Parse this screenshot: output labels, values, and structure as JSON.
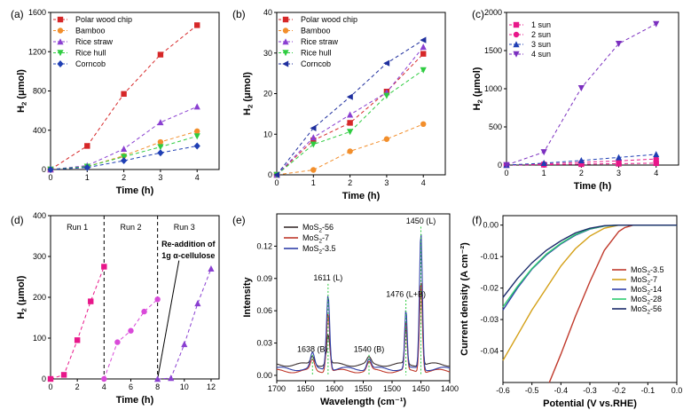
{
  "chart_data": [
    {
      "id": "a",
      "panel_label": "(a)",
      "type": "line",
      "xlabel": "Time (h)",
      "ylabel": "H2 (μmol)",
      "xlim": [
        0,
        4.6
      ],
      "ylim": [
        0,
        1600
      ],
      "xticks": [
        0,
        1,
        2,
        3,
        4
      ],
      "yticks": [
        0,
        400,
        800,
        1200,
        1600
      ],
      "series": [
        {
          "name": "Polar wood chip",
          "color": "#d62728",
          "marker": "square",
          "x": [
            0,
            1,
            2,
            3,
            4
          ],
          "y": [
            0,
            240,
            770,
            1170,
            1470
          ]
        },
        {
          "name": "Bamboo",
          "color": "#f28e2b",
          "marker": "circle",
          "x": [
            0,
            1,
            2,
            3,
            4
          ],
          "y": [
            0,
            30,
            140,
            280,
            390
          ]
        },
        {
          "name": "Rice straw",
          "color": "#8a3fd1",
          "marker": "triangle-up",
          "x": [
            0,
            1,
            2,
            3,
            4
          ],
          "y": [
            0,
            40,
            210,
            480,
            640
          ]
        },
        {
          "name": "Rice hull",
          "color": "#2ecc40",
          "marker": "triangle-down",
          "x": [
            0,
            1,
            2,
            3,
            4
          ],
          "y": [
            0,
            30,
            130,
            230,
            340
          ]
        },
        {
          "name": "Corncob",
          "color": "#1f3fb4",
          "marker": "diamond",
          "x": [
            0,
            1,
            2,
            3,
            4
          ],
          "y": [
            0,
            20,
            90,
            170,
            240
          ]
        }
      ]
    },
    {
      "id": "b",
      "panel_label": "(b)",
      "type": "line",
      "xlabel": "Time (h)",
      "ylabel": "H2 (μmol)",
      "xlim": [
        0,
        4.6
      ],
      "ylim": [
        0,
        40
      ],
      "xticks": [
        0,
        1,
        2,
        3,
        4
      ],
      "yticks": [
        0,
        10,
        20,
        30,
        40
      ],
      "series": [
        {
          "name": "Polar wood chip",
          "color": "#d62728",
          "marker": "square",
          "x": [
            0,
            1,
            2,
            3,
            4
          ],
          "y": [
            0,
            8.5,
            12.8,
            20.5,
            29.8
          ]
        },
        {
          "name": "Bamboo",
          "color": "#f28e2b",
          "marker": "circle",
          "x": [
            0,
            1,
            2,
            3,
            4
          ],
          "y": [
            0,
            1.2,
            5.8,
            8.8,
            12.5
          ]
        },
        {
          "name": "Rice straw",
          "color": "#8a3fd1",
          "marker": "triangle-up",
          "x": [
            0,
            1,
            2,
            3,
            4
          ],
          "y": [
            0,
            9.2,
            14.8,
            20.3,
            31.5
          ]
        },
        {
          "name": "Rice hull",
          "color": "#2ecc40",
          "marker": "triangle-down",
          "x": [
            0,
            1,
            2,
            3,
            4
          ],
          "y": [
            0,
            7.5,
            10.6,
            19.5,
            25.8
          ]
        },
        {
          "name": "Corncob",
          "color": "#1f2f9e",
          "marker": "triangle-left",
          "x": [
            0,
            1,
            2,
            3,
            4
          ],
          "y": [
            0,
            11.5,
            19.2,
            27.5,
            33.2
          ]
        }
      ]
    },
    {
      "id": "c",
      "panel_label": "(c)",
      "type": "line",
      "xlabel": "Time (h)",
      "ylabel": "H2 (μmol)",
      "xlim": [
        0,
        4.6
      ],
      "ylim": [
        0,
        2000
      ],
      "xticks": [
        0,
        1,
        2,
        3,
        4
      ],
      "yticks": [
        0,
        500,
        1000,
        1500,
        2000
      ],
      "series": [
        {
          "name": "1 sun",
          "color": "#e8178a",
          "marker": "square",
          "x": [
            0,
            1,
            2,
            3,
            4
          ],
          "y": [
            0,
            5,
            12,
            18,
            25
          ]
        },
        {
          "name": "2 sun",
          "color": "#e8178a",
          "marker": "circle",
          "x": [
            0,
            1,
            2,
            3,
            4
          ],
          "y": [
            0,
            15,
            35,
            55,
            80
          ]
        },
        {
          "name": "3 sun",
          "color": "#1f3fb4",
          "marker": "triangle-up",
          "x": [
            0,
            1,
            2,
            3,
            4
          ],
          "y": [
            0,
            25,
            60,
            100,
            140
          ]
        },
        {
          "name": "4 sun",
          "color": "#7b2fbf",
          "marker": "triangle-down",
          "x": [
            0,
            1,
            2,
            3,
            4
          ],
          "y": [
            0,
            170,
            1010,
            1590,
            1850
          ]
        }
      ]
    },
    {
      "id": "d",
      "panel_label": "(d)",
      "type": "line",
      "xlabel": "Time (h)",
      "ylabel": "H2 (μmol)",
      "xlim": [
        0,
        12.6
      ],
      "ylim": [
        0,
        400
      ],
      "xticks": [
        0,
        2,
        4,
        6,
        8,
        10,
        12
      ],
      "yticks": [
        0,
        100,
        200,
        300,
        400
      ],
      "run_labels": [
        "Run 1",
        "Run 2",
        "Run 3"
      ],
      "annotation": [
        "Re-addition of",
        "1g α-cellulose"
      ],
      "dividers_x": [
        4,
        8
      ],
      "series": [
        {
          "name": "Run 1",
          "color": "#e8178a",
          "marker": "square",
          "x": [
            0,
            1,
            2,
            3,
            4
          ],
          "y": [
            0,
            10,
            95,
            190,
            275
          ]
        },
        {
          "name": "Run 2",
          "color": "#d94ad9",
          "marker": "circle",
          "x": [
            4,
            5,
            6,
            7,
            8
          ],
          "y": [
            0,
            90,
            118,
            165,
            195
          ]
        },
        {
          "name": "Run 3",
          "color": "#8a3fd1",
          "marker": "triangle-up",
          "x": [
            8,
            9,
            10,
            11,
            12
          ],
          "y": [
            0,
            2,
            85,
            185,
            270
          ]
        }
      ]
    },
    {
      "id": "e",
      "panel_label": "(e)",
      "type": "line",
      "xlabel": "Wavelength (cm⁻¹)",
      "ylabel": "Intensity",
      "xlim": [
        1700,
        1400
      ],
      "ylim": [
        -0.005,
        0.15
      ],
      "xticks": [
        1700,
        1650,
        1600,
        1550,
        1500,
        1450,
        1400
      ],
      "yticks": [
        0.0,
        0.03,
        0.06,
        0.09,
        0.12
      ],
      "ytick_labels": [
        "0.00",
        "0.03",
        "0.06",
        "0.09",
        "0.12"
      ],
      "peaks": [
        {
          "x": 1638,
          "label": "1638 (B)"
        },
        {
          "x": 1611,
          "label": "1611 (L)"
        },
        {
          "x": 1540,
          "label": "1540 (B)"
        },
        {
          "x": 1476,
          "label": "1476 (L+B)"
        },
        {
          "x": 1450,
          "label": "1450 (L)"
        }
      ],
      "series": [
        {
          "name": "MoS2-56",
          "color": "#3a2f2f"
        },
        {
          "name": "MoS2-7",
          "color": "#c0392b"
        },
        {
          "name": "MoS2-3.5",
          "color": "#2f3fa8"
        }
      ]
    },
    {
      "id": "f",
      "panel_label": "(f)",
      "type": "line",
      "xlabel": "Potential (V vs.RHE)",
      "ylabel": "Current density (A cm⁻²)",
      "xlim": [
        -0.6,
        0.0
      ],
      "ylim": [
        -0.05,
        0.003
      ],
      "xticks": [
        -0.6,
        -0.5,
        -0.4,
        -0.3,
        -0.2,
        -0.1,
        0.0
      ],
      "xtick_labels": [
        "-0.6",
        "-0.5",
        "-0.4",
        "-0.3",
        "-0.2",
        "-0.1",
        "0.0"
      ],
      "yticks": [
        0.0,
        -0.01,
        -0.02,
        -0.03,
        -0.04
      ],
      "ytick_labels": [
        "0.00",
        "-0.01",
        "-0.02",
        "-0.03",
        "-0.04"
      ],
      "series": [
        {
          "name": "MoS2-3.5",
          "color": "#c0392b",
          "x": [
            -0.44,
            -0.4,
            -0.35,
            -0.3,
            -0.25,
            -0.2,
            -0.18,
            -0.15,
            0.0
          ],
          "y": [
            -0.05,
            -0.041,
            -0.029,
            -0.018,
            -0.008,
            -0.002,
            -0.0008,
            0,
            0
          ]
        },
        {
          "name": "MoS2-7",
          "color": "#d4a017",
          "x": [
            -0.6,
            -0.55,
            -0.5,
            -0.45,
            -0.4,
            -0.35,
            -0.3,
            -0.25,
            -0.2,
            0.0
          ],
          "y": [
            -0.043,
            -0.035,
            -0.027,
            -0.02,
            -0.013,
            -0.0075,
            -0.0035,
            -0.001,
            0,
            0
          ]
        },
        {
          "name": "MoS2-14",
          "color": "#2f3fa8",
          "x": [
            -0.6,
            -0.55,
            -0.5,
            -0.45,
            -0.4,
            -0.35,
            -0.3,
            -0.25,
            -0.2,
            0.0
          ],
          "y": [
            -0.027,
            -0.02,
            -0.014,
            -0.0095,
            -0.006,
            -0.0032,
            -0.0013,
            -0.0003,
            0,
            0
          ]
        },
        {
          "name": "MoS2-28",
          "color": "#2ecc71",
          "x": [
            -0.6,
            -0.55,
            -0.5,
            -0.45,
            -0.4,
            -0.35,
            -0.3,
            -0.25,
            -0.2,
            0.0
          ],
          "y": [
            -0.026,
            -0.0195,
            -0.0138,
            -0.0092,
            -0.0058,
            -0.003,
            -0.0012,
            -0.0003,
            0,
            0
          ]
        },
        {
          "name": "MoS2-56",
          "color": "#1b2b6b",
          "x": [
            -0.6,
            -0.55,
            -0.5,
            -0.45,
            -0.4,
            -0.35,
            -0.3,
            -0.25,
            -0.2,
            0.0
          ],
          "y": [
            -0.023,
            -0.017,
            -0.012,
            -0.008,
            -0.005,
            -0.0025,
            -0.001,
            -0.0002,
            0,
            0
          ]
        }
      ]
    }
  ]
}
